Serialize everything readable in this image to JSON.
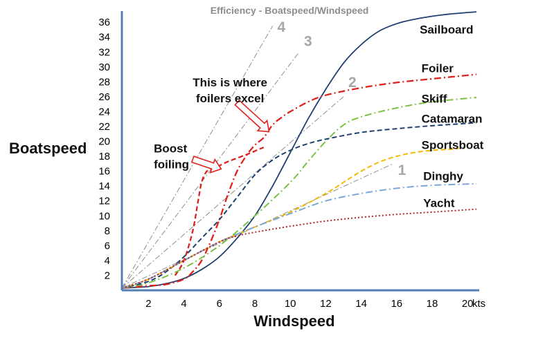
{
  "chart_data": {
    "type": "line",
    "title": "Efficiency - Boatspeed/Windspeed",
    "xlabel": "Windspeed",
    "ylabel": "Boatspeed",
    "x_unit": "kts",
    "xlim": [
      0.5,
      20.5
    ],
    "ylim": [
      0,
      37.5
    ],
    "x_ticks": [
      2,
      4,
      6,
      8,
      10,
      12,
      14,
      16,
      18,
      20
    ],
    "y_ticks": [
      2,
      4,
      6,
      8,
      10,
      12,
      14,
      16,
      18,
      20,
      22,
      24,
      26,
      28,
      30,
      32,
      34,
      36
    ],
    "grid": false,
    "series": [
      {
        "name": "Sailboard",
        "color": "#1f3f6e",
        "style": "solid",
        "x": [
          0.5,
          2,
          3,
          4,
          5,
          6,
          7,
          8,
          9,
          10,
          11,
          12,
          13,
          14,
          15,
          16,
          17,
          18,
          19,
          20.5
        ],
        "y": [
          0.3,
          0.5,
          0.9,
          1.6,
          2.8,
          4.5,
          7,
          10,
          14,
          18.5,
          23,
          27,
          30.5,
          33,
          34.8,
          35.8,
          36.4,
          36.8,
          37.1,
          37.4
        ]
      },
      {
        "name": "Foiler",
        "color": "#e0201b",
        "style": "dashdot",
        "x": [
          0.5,
          2,
          3,
          4,
          4.5,
          5,
          5.5,
          6,
          6.5,
          7,
          7.5,
          8,
          8.5,
          9,
          9.5,
          10,
          11,
          12,
          14,
          16,
          18,
          20.5
        ],
        "y": [
          0.3,
          0.6,
          0.8,
          1.5,
          2.5,
          4,
          6.5,
          9.5,
          13,
          16,
          18,
          19.5,
          20.5,
          22.2,
          23.2,
          24,
          25.3,
          26.2,
          27.2,
          27.9,
          28.4,
          29
        ]
      },
      {
        "name": "Boost foiling",
        "color": "#e0201b",
        "style": "dashed",
        "x": [
          3.5,
          4,
          4.5,
          4.8,
          5,
          5.3,
          5.8,
          6.5,
          7.5,
          8.5
        ],
        "y": [
          2,
          4,
          8,
          12,
          14.5,
          16,
          16.5,
          17.3,
          18.2,
          19.2
        ]
      },
      {
        "name": "Skiff",
        "color": "#7ac143",
        "style": "dashdot",
        "x": [
          0.5,
          2,
          4,
          6,
          8,
          10,
          11,
          12,
          13,
          14,
          16,
          18,
          20.5
        ],
        "y": [
          0.3,
          1,
          3,
          6,
          10,
          14.5,
          17.3,
          20,
          22.2,
          23.3,
          24.5,
          25.3,
          25.9
        ]
      },
      {
        "name": "Catamaran",
        "color": "#1f3f6e",
        "style": "dashed",
        "x": [
          0.5,
          2,
          3,
          4,
          5,
          6,
          7,
          8,
          9,
          10,
          11,
          12,
          14,
          16,
          18,
          20.5
        ],
        "y": [
          0.3,
          1.2,
          2.5,
          4.5,
          7,
          9.5,
          12.5,
          15.5,
          17.5,
          18.8,
          19.7,
          20.3,
          21.2,
          21.7,
          22.1,
          22.5
        ]
      },
      {
        "name": "Sportsboat",
        "color": "#f5b800",
        "style": "dashed",
        "x": [
          0.5,
          2,
          4,
          6,
          8,
          10,
          12,
          13,
          14,
          15,
          16,
          17,
          18,
          19.5
        ],
        "y": [
          0.3,
          1.5,
          4,
          6.5,
          8.5,
          10.5,
          13,
          14.5,
          16,
          17.2,
          18,
          18.5,
          18.8,
          19
        ]
      },
      {
        "name": "Dinghy",
        "color": "#7aa7d8",
        "style": "dashdot",
        "x": [
          0.5,
          2,
          4,
          6,
          8,
          10,
          12,
          14,
          16,
          18,
          20.5
        ],
        "y": [
          0.3,
          1.5,
          4,
          6.5,
          8.5,
          10.3,
          12,
          13,
          13.7,
          14.1,
          14.3
        ]
      },
      {
        "name": "Yacht",
        "color": "#b32025",
        "style": "dotted",
        "x": [
          0.5,
          2,
          4,
          6,
          7,
          8,
          10,
          12,
          14,
          16,
          18,
          20.5
        ],
        "y": [
          0.3,
          1.5,
          4,
          6.5,
          7.3,
          7.8,
          8.6,
          9.3,
          9.8,
          10.2,
          10.5,
          10.9
        ]
      }
    ],
    "reference_lines": [
      {
        "label": "1",
        "color": "#8c8c8c",
        "x": [
          0.5,
          15.8
        ],
        "y": [
          0.3,
          17
        ]
      },
      {
        "label": "2",
        "color": "#8c8c8c",
        "x": [
          0.5,
          13
        ],
        "y": [
          0.3,
          26
        ]
      },
      {
        "label": "3",
        "color": "#8c8c8c",
        "x": [
          0.5,
          10.5
        ],
        "y": [
          0.3,
          32
        ]
      },
      {
        "label": "4",
        "color": "#8c8c8c",
        "x": [
          0.5,
          9
        ],
        "y": [
          0.3,
          35.5
        ]
      }
    ],
    "annotations": [
      {
        "lines": [
          "This is where",
          "foilers excel"
        ],
        "x": 6.6,
        "y": 27.4
      },
      {
        "lines": [
          "Boost",
          "foiling"
        ],
        "x": 2.3,
        "y": 18.5
      }
    ]
  }
}
